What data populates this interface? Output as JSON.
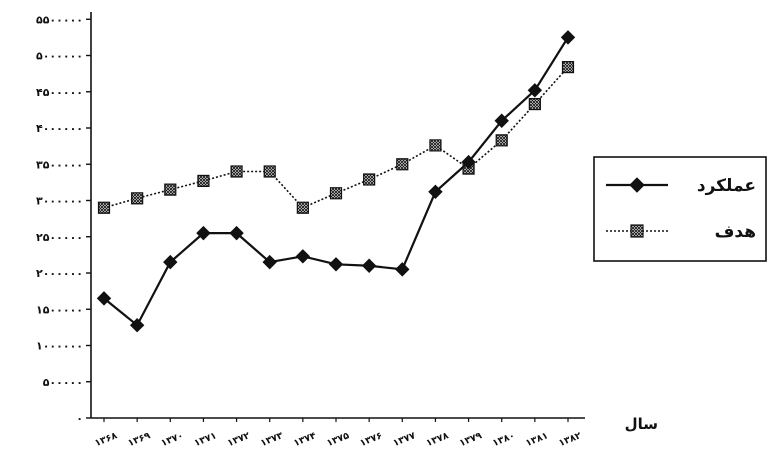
{
  "chart_data": {
    "type": "line",
    "xlabel": "سال",
    "ylabel": "",
    "ylim": [
      0,
      5600000
    ],
    "y_tick_values": [
      0,
      500000,
      1000000,
      1500000,
      2000000,
      2500000,
      3000000,
      3500000,
      4000000,
      4500000,
      5000000,
      5500000
    ],
    "y_tick_labels": [
      "۰",
      "۵۰۰۰۰۰",
      "۱۰۰۰۰۰۰",
      "۱۵۰۰۰۰۰",
      "۲۰۰۰۰۰۰",
      "۲۵۰۰۰۰۰",
      "۳۰۰۰۰۰۰",
      "۳۵۰۰۰۰۰",
      "۴۰۰۰۰۰۰",
      "۴۵۰۰۰۰۰",
      "۵۰۰۰۰۰۰",
      "۵۵۰۰۰۰۰"
    ],
    "categories": [
      "۱۳۶۸",
      "۱۳۶۹",
      "۱۳۷۰",
      "۱۳۷۱",
      "۱۳۷۲",
      "۱۳۷۳",
      "۱۳۷۴",
      "۱۳۷۵",
      "۱۳۷۶",
      "۱۳۷۷",
      "۱۳۷۸",
      "۱۳۷۹",
      "۱۳۸۰",
      "۱۳۸۱",
      "۱۳۸۲"
    ],
    "series": [
      {
        "name": "عملکرد",
        "marker": "diamond",
        "line_style": "solid",
        "color": "#111111",
        "values": [
          1650000,
          1280000,
          2150000,
          2550000,
          2550000,
          2150000,
          2230000,
          2120000,
          2100000,
          2050000,
          3120000,
          3530000,
          4100000,
          4520000,
          5250000
        ]
      },
      {
        "name": "هدف",
        "marker": "hatched-square",
        "line_style": "dotted",
        "color": "#111111",
        "values": [
          2900000,
          3030000,
          3150000,
          3270000,
          3400000,
          3400000,
          2900000,
          3100000,
          3290000,
          3500000,
          3760000,
          3440000,
          3830000,
          4330000,
          4840000
        ]
      }
    ],
    "legend": "right",
    "grid": false
  }
}
